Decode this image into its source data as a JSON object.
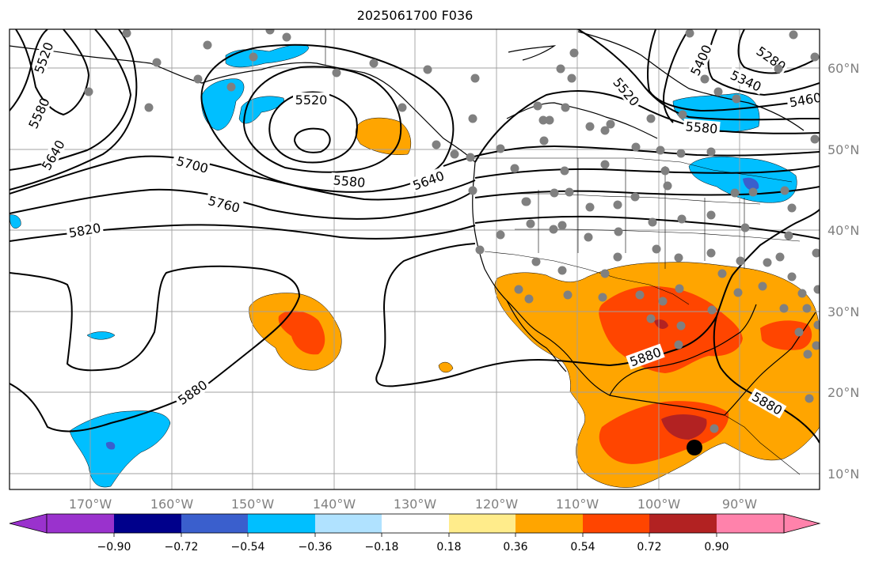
{
  "title": "2025061700 F036",
  "colors": {
    "c_neg090": "#9a32cd",
    "c_neg072": "#00008b",
    "c_neg054": "#3a5fcd",
    "c_neg036": "#00bfff",
    "c_neg018": "#b0e2ff",
    "c_zero": "#ffffff",
    "c_pos018": "#ffec8b",
    "c_pos036": "#ffa500",
    "c_pos054": "#ff4500",
    "c_pos072": "#b22222",
    "c_pos090": "#ff82ab",
    "station": "#808080",
    "grid": "#a0a0a0"
  },
  "lat_labels": [
    "60°N",
    "50°N",
    "40°N",
    "30°N",
    "20°N",
    "10°N"
  ],
  "lon_labels": [
    "170°W",
    "160°W",
    "150°W",
    "140°W",
    "130°W",
    "120°W",
    "110°W",
    "100°W",
    "90°W"
  ],
  "colorbar": {
    "levels": [
      "−0.90",
      "−0.72",
      "−0.54",
      "−0.36",
      "−0.18",
      "0.18",
      "0.36",
      "0.54",
      "0.72",
      "0.90"
    ]
  },
  "contour_labels": [
    "5520",
    "5580",
    "5640",
    "5700",
    "5760",
    "5820",
    "5520",
    "5580",
    "5640",
    "5520",
    "5400",
    "5280",
    "5340",
    "5460",
    "5580",
    "5880",
    "5880",
    "5880"
  ]
}
